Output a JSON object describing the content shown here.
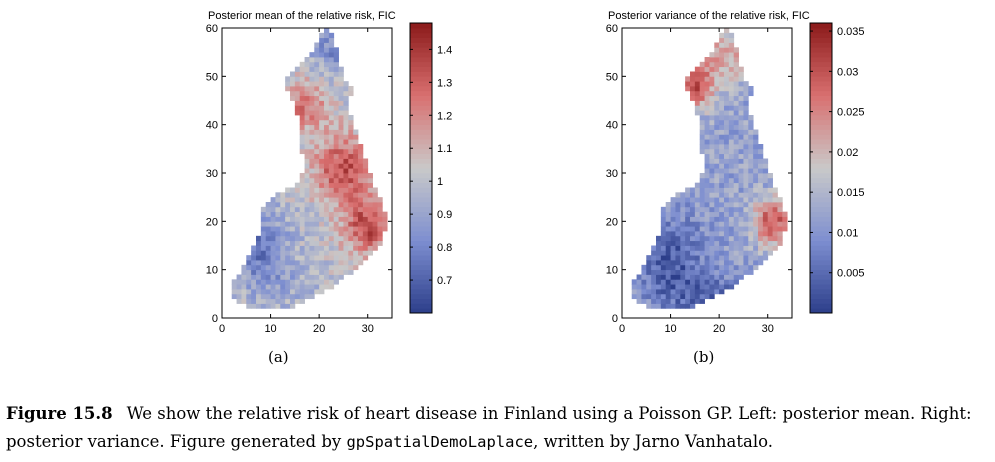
{
  "chart_data": [
    {
      "type": "heatmap",
      "title": "Posterior mean of the relative risk, FIC",
      "panel_label": "(a)",
      "xlim": [
        0,
        35
      ],
      "ylim": [
        0,
        60
      ],
      "x_ticks": [
        0,
        10,
        20,
        30
      ],
      "y_ticks": [
        0,
        10,
        20,
        30,
        40,
        50,
        60
      ],
      "colorbar": {
        "range": [
          0.6,
          1.48
        ],
        "ticks": [
          0.7,
          0.8,
          0.9,
          1,
          1.1,
          1.2,
          1.3,
          1.4
        ],
        "tick_labels": [
          "0.7",
          "0.8",
          "0.9",
          "1",
          "1.1",
          "1.2",
          "1.3",
          "1.4"
        ],
        "colormap": [
          "#2c3e8a",
          "#7d8ed0",
          "#c9c9c9",
          "#d97070",
          "#8b1a1a"
        ]
      },
      "field_summary": {
        "north": 0.82,
        "northwest_arm": 1.25,
        "central_east": 1.35,
        "southeast": 1.35,
        "southwest": 0.75,
        "south": 0.95
      }
    },
    {
      "type": "heatmap",
      "title": "Posterior variance of the relative risk, FIC",
      "panel_label": "(b)",
      "xlim": [
        0,
        35
      ],
      "ylim": [
        0,
        60
      ],
      "x_ticks": [
        0,
        10,
        20,
        30
      ],
      "y_ticks": [
        0,
        10,
        20,
        30,
        40,
        50,
        60
      ],
      "colorbar": {
        "range": [
          0.0,
          0.036
        ],
        "ticks": [
          0.005,
          0.01,
          0.015,
          0.02,
          0.025,
          0.03,
          0.035
        ],
        "tick_labels": [
          "0.005",
          "0.01",
          "0.015",
          "0.02",
          "0.025",
          "0.03",
          "0.035"
        ],
        "colormap": [
          "#2c3e8a",
          "#7d8ed0",
          "#c9c9c9",
          "#d97070",
          "#8b1a1a"
        ]
      },
      "field_summary": {
        "north": 0.022,
        "northwest_arm": 0.03,
        "central": 0.012,
        "southeast": 0.03,
        "southwest": 0.003,
        "south": 0.006
      }
    }
  ],
  "caption": {
    "figure_number": "Figure 15.8",
    "text_before_code": "We show the relative risk of heart disease in Finland using a Poisson GP. Left: posterior mean. Right: posterior variance. Figure generated by ",
    "code": "gpSpatialDemoLaplace",
    "text_after_code": ", written by Jarno Vanhatalo."
  }
}
